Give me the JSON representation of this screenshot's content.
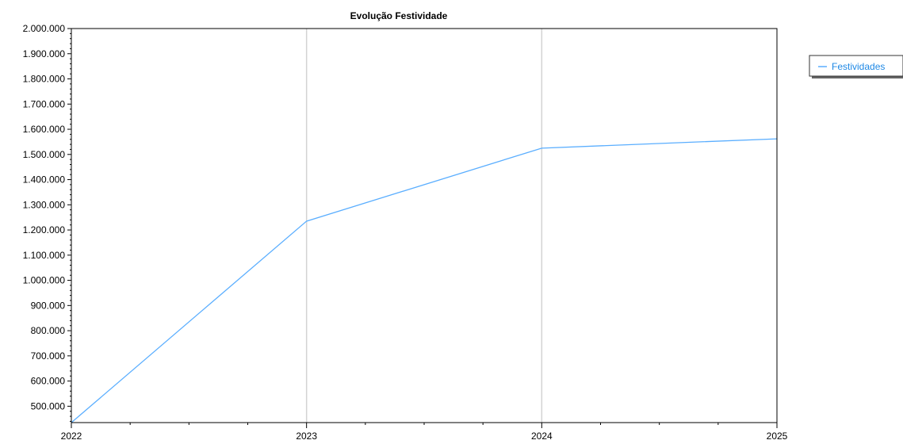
{
  "chart_data": {
    "type": "line",
    "title": "Evolução Festividade",
    "xlabel": "",
    "ylabel": "",
    "categories": [
      "2022",
      "2023",
      "2024",
      "2025"
    ],
    "x": [
      2022,
      2023,
      2024,
      2025
    ],
    "series": [
      {
        "name": "Festividades",
        "values": [
          435000,
          1235000,
          1525000,
          1562000
        ],
        "color": "#5aaeff"
      }
    ],
    "ylim": [
      435000,
      2000000
    ],
    "yticks": [
      500000,
      600000,
      700000,
      800000,
      900000,
      1000000,
      1100000,
      1200000,
      1300000,
      1400000,
      1500000,
      1600000,
      1700000,
      1800000,
      1900000,
      2000000
    ],
    "ytick_labels": [
      "500.000",
      "600.000",
      "700.000",
      "800.000",
      "900.000",
      "1.000.000",
      "1.100.000",
      "1.200.000",
      "1.300.000",
      "1.400.000",
      "1.500.000",
      "1.600.000",
      "1.700.000",
      "1.800.000",
      "1.900.000",
      "2.000.000"
    ],
    "xtick_labels": [
      "2022",
      "2023",
      "2024",
      "2025"
    ],
    "grid": "vertical",
    "legend_position": "top-right"
  }
}
